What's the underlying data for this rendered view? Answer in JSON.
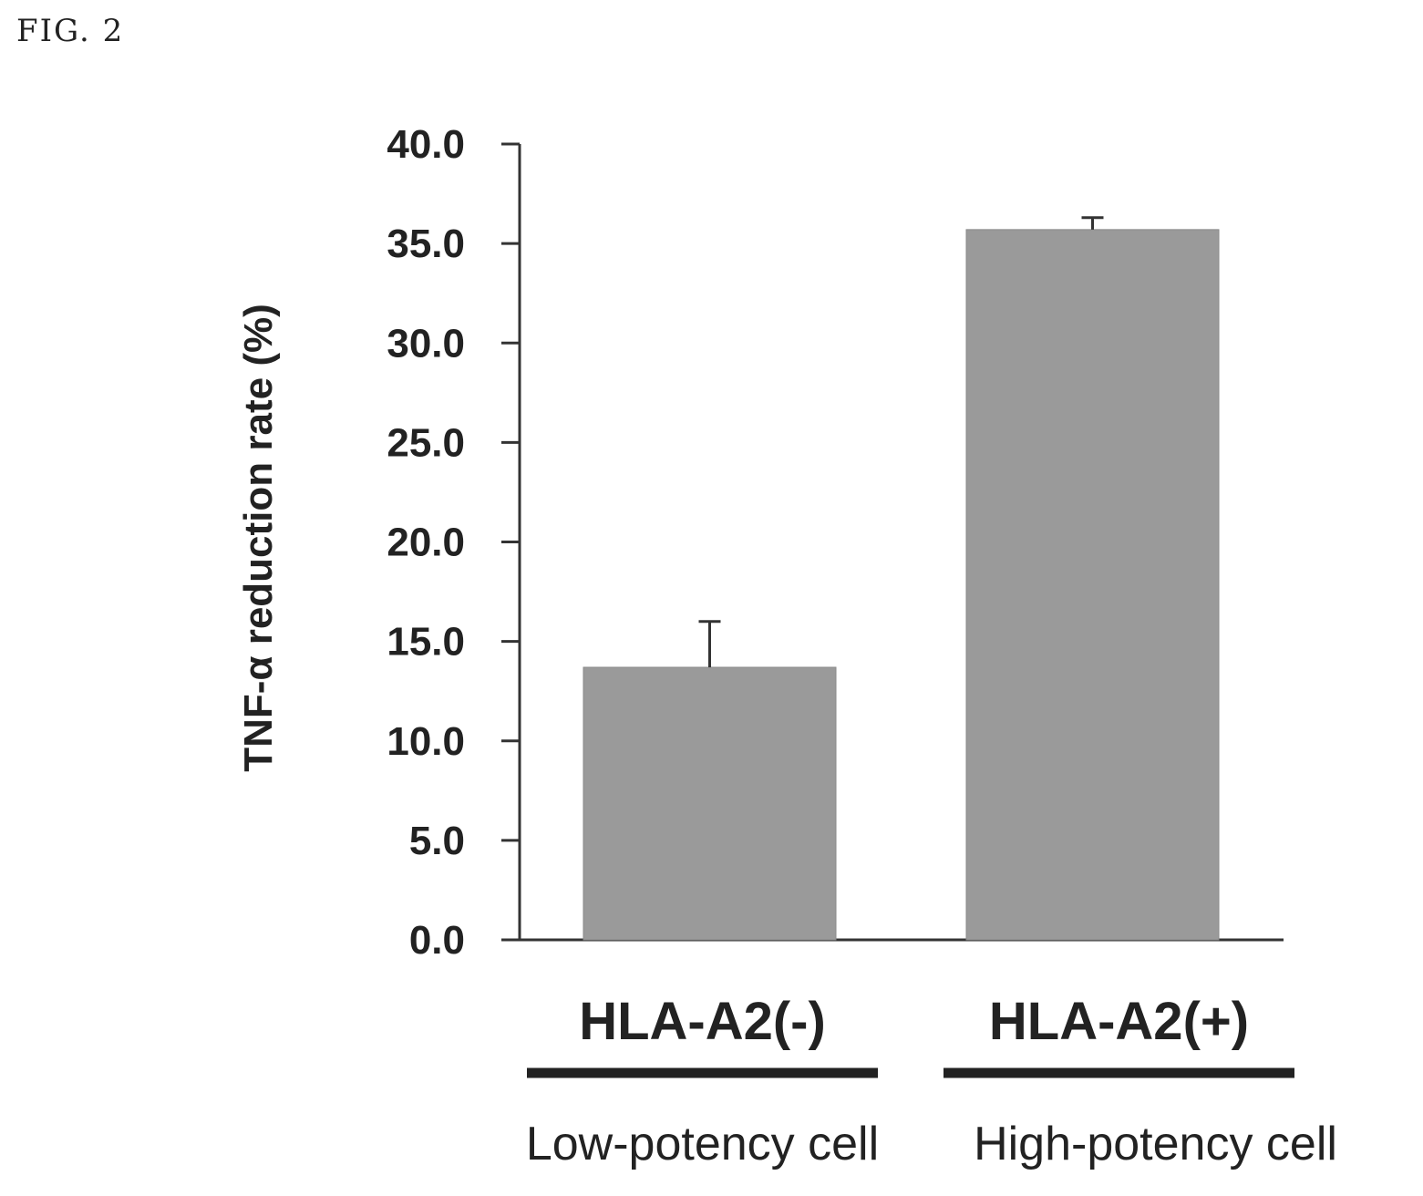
{
  "figure_label": "FIG. 2",
  "chart_data": {
    "type": "bar",
    "ylabel": "TNF-α reduction rate (%)",
    "ylim": [
      0,
      40
    ],
    "yticks": [
      "0.0",
      "5.0",
      "10.0",
      "15.0",
      "20.0",
      "25.0",
      "30.0",
      "35.0",
      "40.0"
    ],
    "ytick_values": [
      0,
      5,
      10,
      15,
      20,
      25,
      30,
      35,
      40
    ],
    "categories": [
      "HLA-A2(-)",
      "HLA-A2(+)"
    ],
    "sublabels": [
      "Low-potency cell",
      "High-potency cell"
    ],
    "values": [
      13.7,
      35.7
    ],
    "error_upper": [
      2.3,
      0.6
    ],
    "grid": false,
    "colors": {
      "bar": "#9a9a9a",
      "axis": "#333333",
      "underline": "#222222"
    }
  }
}
